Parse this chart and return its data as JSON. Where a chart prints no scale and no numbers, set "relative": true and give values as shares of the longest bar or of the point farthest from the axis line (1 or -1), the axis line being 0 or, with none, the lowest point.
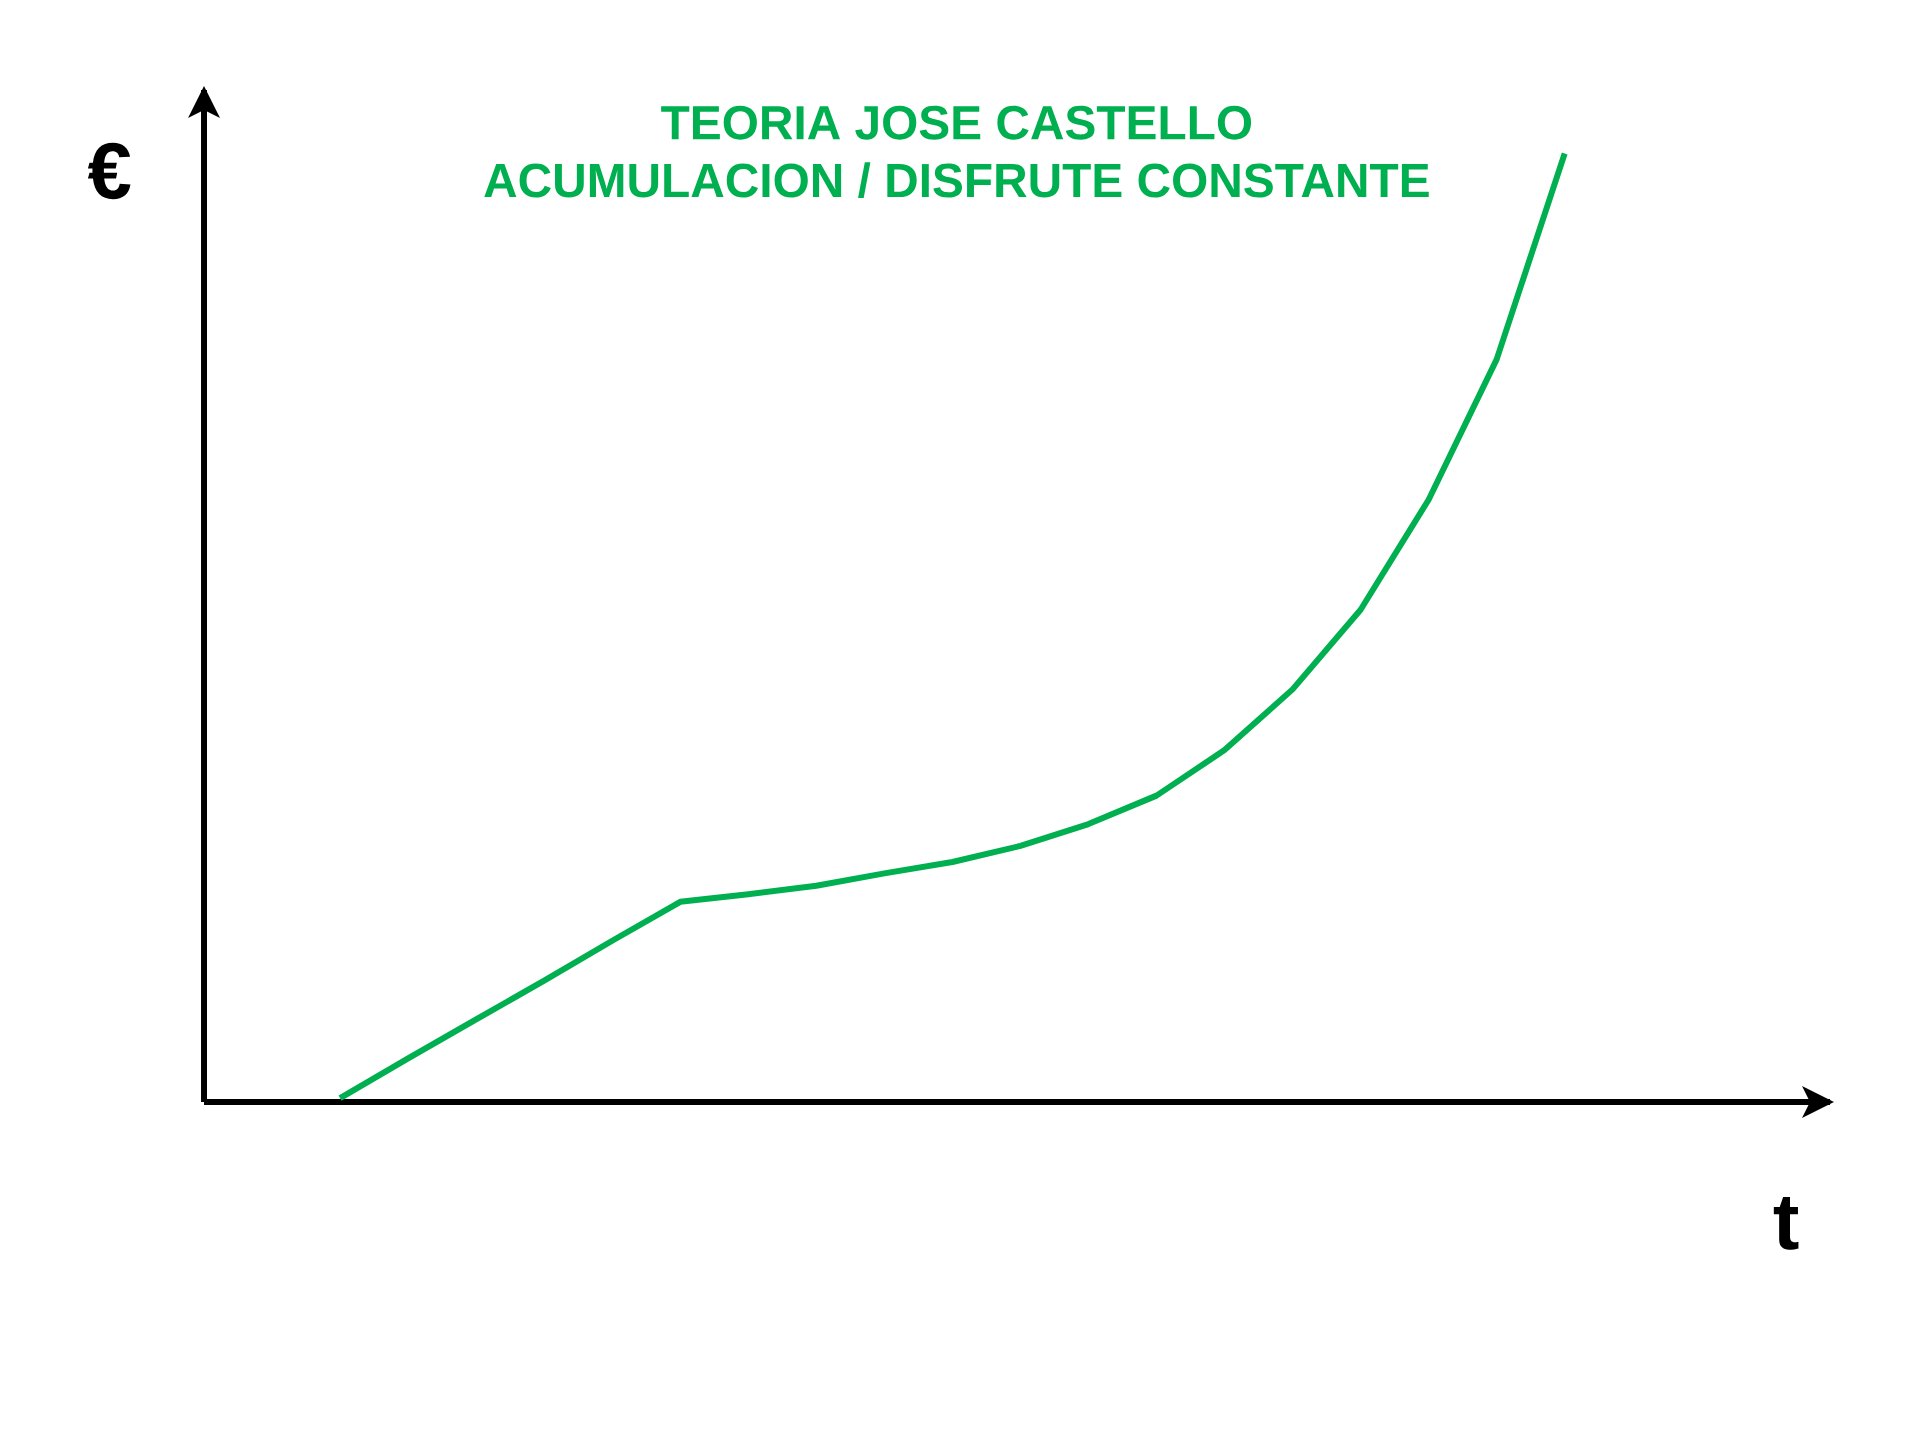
{
  "chart_data": {
    "type": "line",
    "title": "TEORIA JOSE CASTELLO",
    "subtitle": "ACUMULACION / DISFRUTE CONSTANTE",
    "xlabel": "t",
    "ylabel": "€",
    "relative": true,
    "categories": [
      null,
      null,
      null,
      null,
      null,
      null,
      null,
      null,
      null,
      null,
      null,
      null,
      null,
      null,
      null,
      null,
      null,
      null,
      null,
      null,
      null,
      null,
      null,
      null
    ],
    "series": [
      {
        "color": "#00b050",
        "values": [
          null,
          null,
          0.004,
          0.046,
          0.087,
          0.128,
          0.17,
          0.211,
          0.219,
          0.228,
          0.241,
          0.253,
          0.27,
          0.293,
          0.323,
          0.371,
          0.435,
          0.519,
          0.635,
          0.783,
          1,
          null,
          null,
          null
        ]
      }
    ],
    "marker": "none",
    "line_style": "solid"
  }
}
